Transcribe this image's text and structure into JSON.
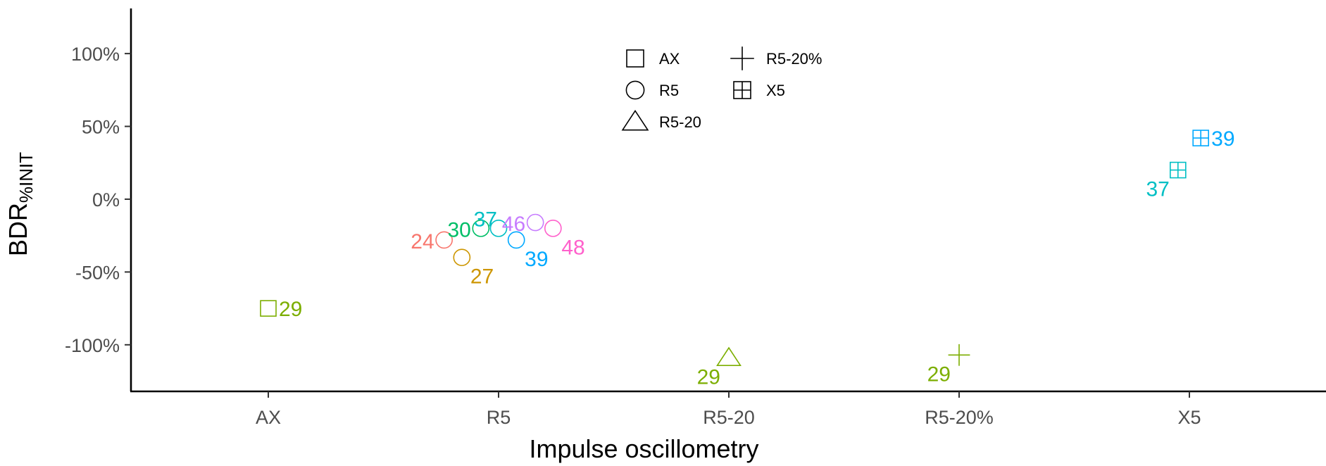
{
  "chart_data": {
    "type": "scatter",
    "xlabel": "Impulse oscillometry",
    "ylabel_main": "BDR",
    "ylabel_sub": "%INIT",
    "categories": [
      "AX",
      "R5",
      "R5-20",
      "R5-20%",
      "X5"
    ],
    "ylim": [
      -132,
      131
    ],
    "yticks": [
      {
        "value": 100,
        "label": "100%"
      },
      {
        "value": 50,
        "label": "50%"
      },
      {
        "value": 0,
        "label": "0%"
      },
      {
        "value": -50,
        "label": "-50%"
      },
      {
        "value": -100,
        "label": "-100%"
      }
    ],
    "grid": false,
    "legend": {
      "placement": "top-center",
      "entries": [
        {
          "shape": "square",
          "label": "AX"
        },
        {
          "shape": "circle",
          "label": "R5"
        },
        {
          "shape": "triangle",
          "label": "R5-20"
        },
        {
          "shape": "plus",
          "label": "R5-20%"
        },
        {
          "shape": "boxplus",
          "label": "X5"
        }
      ]
    },
    "points": [
      {
        "category": "AX",
        "offset": 0.0,
        "y": -75,
        "shape": "square",
        "label": "29",
        "color": "#7CAE00",
        "label_pos": "right"
      },
      {
        "category": "R5",
        "offset": -0.43,
        "y": -28,
        "shape": "circle",
        "label": "24",
        "color": "#F8766D",
        "label_pos": "left"
      },
      {
        "category": "R5",
        "offset": -0.29,
        "y": -40,
        "shape": "circle",
        "label": "27",
        "color": "#CD9600",
        "label_pos": "below-right"
      },
      {
        "category": "R5",
        "offset": -0.14,
        "y": -20,
        "shape": "circle",
        "label": "30",
        "color": "#00BE67",
        "label_pos": "left"
      },
      {
        "category": "R5",
        "offset": 0.0,
        "y": -20,
        "shape": "circle",
        "label": "37",
        "color": "#00BFC4",
        "label_pos": "above-left"
      },
      {
        "category": "R5",
        "offset": 0.14,
        "y": -28,
        "shape": "circle",
        "label": "39",
        "color": "#00A9FF",
        "label_pos": "below-right"
      },
      {
        "category": "R5",
        "offset": 0.29,
        "y": -16,
        "shape": "circle",
        "label": "46",
        "color": "#C77CFF",
        "label_pos": "left"
      },
      {
        "category": "R5",
        "offset": 0.43,
        "y": -20,
        "shape": "circle",
        "label": "48",
        "color": "#FF61CC",
        "label_pos": "below-right"
      },
      {
        "category": "R5-20",
        "offset": 0.0,
        "y": -109,
        "shape": "triangle",
        "label": "29",
        "color": "#7CAE00",
        "label_pos": "below-left"
      },
      {
        "category": "R5-20%",
        "offset": 0.0,
        "y": -107,
        "shape": "plus",
        "label": "29",
        "color": "#7CAE00",
        "label_pos": "below-left"
      },
      {
        "category": "X5",
        "offset": -0.09,
        "y": 20,
        "shape": "boxplus",
        "label": "37",
        "color": "#00BFC4",
        "label_pos": "below-left"
      },
      {
        "category": "X5",
        "offset": 0.09,
        "y": 42,
        "shape": "boxplus",
        "label": "39",
        "color": "#00A9FF",
        "label_pos": "right"
      }
    ]
  }
}
